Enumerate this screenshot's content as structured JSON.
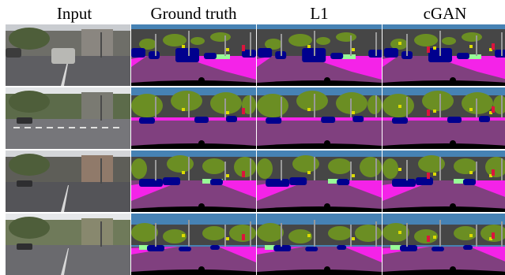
{
  "figure": {
    "columns": [
      {
        "key": "input",
        "label": "Input"
      },
      {
        "key": "gt",
        "label": "Ground truth"
      },
      {
        "key": "l1",
        "label": "L1"
      },
      {
        "key": "cgan",
        "label": "cGAN"
      }
    ],
    "row_count": 4
  },
  "colors": {
    "sky": "#4682b4",
    "building": "#464646",
    "vegetation": "#6b8e23",
    "road": "#80407f",
    "sidewalk": "#f423e8",
    "car": "#00008e",
    "pole": "#999999",
    "terrain": "#98fb98",
    "sign": "#dcdc00",
    "person": "#dc143c"
  }
}
